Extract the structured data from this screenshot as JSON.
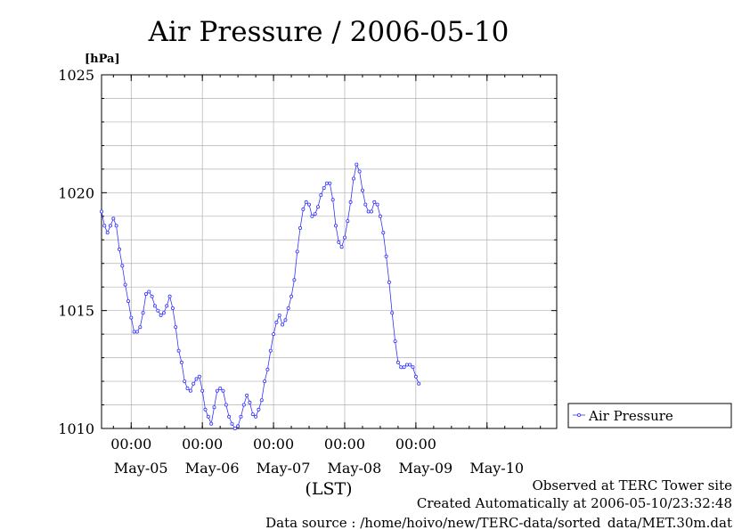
{
  "chart_data": {
    "type": "line",
    "title": "Air Pressure / 2006-05-10",
    "ylabel": "[hPa]",
    "xlabel": "(LST)",
    "ylim": [
      1010,
      1025
    ],
    "xlim": [
      "2006-05-04T14:00",
      "2006-05-10T23:30"
    ],
    "y_ticks": [
      "1010",
      "1015",
      "1020",
      "1025"
    ],
    "x_tick_time_label": "00:00",
    "x_day_labels": [
      "May-05",
      "May-06",
      "May-07",
      "May-08",
      "May-09",
      "May-10"
    ],
    "grid": true,
    "legend_position": "right",
    "series": [
      {
        "name": "Air Pressure",
        "color": "#3333ff",
        "marker": "circle",
        "points": [
          [
            "2006-05-04T14:00",
            1019.2
          ],
          [
            "2006-05-04T15:00",
            1018.6
          ],
          [
            "2006-05-04T16:00",
            1018.3
          ],
          [
            "2006-05-04T17:00",
            1018.6
          ],
          [
            "2006-05-04T18:00",
            1018.9
          ],
          [
            "2006-05-04T19:00",
            1018.6
          ],
          [
            "2006-05-04T20:00",
            1017.6
          ],
          [
            "2006-05-04T21:00",
            1016.9
          ],
          [
            "2006-05-04T22:00",
            1016.1
          ],
          [
            "2006-05-04T23:00",
            1015.4
          ],
          [
            "2006-05-05T00:00",
            1014.7
          ],
          [
            "2006-05-05T01:00",
            1014.1
          ],
          [
            "2006-05-05T02:00",
            1014.1
          ],
          [
            "2006-05-05T03:00",
            1014.3
          ],
          [
            "2006-05-05T04:00",
            1014.9
          ],
          [
            "2006-05-05T05:00",
            1015.7
          ],
          [
            "2006-05-05T06:00",
            1015.8
          ],
          [
            "2006-05-05T07:00",
            1015.6
          ],
          [
            "2006-05-05T08:00",
            1015.2
          ],
          [
            "2006-05-05T09:00",
            1015.0
          ],
          [
            "2006-05-05T10:00",
            1014.8
          ],
          [
            "2006-05-05T11:00",
            1014.9
          ],
          [
            "2006-05-05T12:00",
            1015.2
          ],
          [
            "2006-05-05T13:00",
            1015.6
          ],
          [
            "2006-05-05T14:00",
            1015.1
          ],
          [
            "2006-05-05T15:00",
            1014.3
          ],
          [
            "2006-05-05T16:00",
            1013.3
          ],
          [
            "2006-05-05T17:00",
            1012.8
          ],
          [
            "2006-05-05T18:00",
            1012.0
          ],
          [
            "2006-05-05T19:00",
            1011.7
          ],
          [
            "2006-05-05T20:00",
            1011.6
          ],
          [
            "2006-05-05T21:00",
            1011.9
          ],
          [
            "2006-05-05T22:00",
            1012.1
          ],
          [
            "2006-05-05T23:00",
            1012.2
          ],
          [
            "2006-05-06T00:00",
            1011.6
          ],
          [
            "2006-05-06T01:00",
            1010.8
          ],
          [
            "2006-05-06T02:00",
            1010.5
          ],
          [
            "2006-05-06T03:00",
            1010.2
          ],
          [
            "2006-05-06T04:00",
            1010.9
          ],
          [
            "2006-05-06T05:00",
            1011.6
          ],
          [
            "2006-05-06T06:00",
            1011.7
          ],
          [
            "2006-05-06T07:00",
            1011.6
          ],
          [
            "2006-05-06T08:00",
            1011.0
          ],
          [
            "2006-05-06T09:00",
            1010.5
          ],
          [
            "2006-05-06T10:00",
            1010.2
          ],
          [
            "2006-05-06T11:00",
            1010.0
          ],
          [
            "2006-05-06T12:00",
            1010.1
          ],
          [
            "2006-05-06T13:00",
            1010.5
          ],
          [
            "2006-05-06T14:00",
            1011.0
          ],
          [
            "2006-05-06T15:00",
            1011.4
          ],
          [
            "2006-05-06T16:00",
            1011.1
          ],
          [
            "2006-05-06T17:00",
            1010.6
          ],
          [
            "2006-05-06T18:00",
            1010.5
          ],
          [
            "2006-05-06T19:00",
            1010.8
          ],
          [
            "2006-05-06T20:00",
            1011.2
          ],
          [
            "2006-05-06T21:00",
            1012.0
          ],
          [
            "2006-05-06T22:00",
            1012.5
          ],
          [
            "2006-05-06T23:00",
            1013.3
          ],
          [
            "2006-05-07T00:00",
            1014.0
          ],
          [
            "2006-05-07T01:00",
            1014.5
          ],
          [
            "2006-05-07T02:00",
            1014.8
          ],
          [
            "2006-05-07T03:00",
            1014.4
          ],
          [
            "2006-05-07T04:00",
            1014.6
          ],
          [
            "2006-05-07T05:00",
            1015.1
          ],
          [
            "2006-05-07T06:00",
            1015.6
          ],
          [
            "2006-05-07T07:00",
            1016.3
          ],
          [
            "2006-05-07T08:00",
            1017.5
          ],
          [
            "2006-05-07T09:00",
            1018.5
          ],
          [
            "2006-05-07T10:00",
            1019.3
          ],
          [
            "2006-05-07T11:00",
            1019.6
          ],
          [
            "2006-05-07T12:00",
            1019.5
          ],
          [
            "2006-05-07T13:00",
            1019.0
          ],
          [
            "2006-05-07T14:00",
            1019.1
          ],
          [
            "2006-05-07T15:00",
            1019.4
          ],
          [
            "2006-05-07T16:00",
            1019.9
          ],
          [
            "2006-05-07T17:00",
            1020.2
          ],
          [
            "2006-05-07T18:00",
            1020.4
          ],
          [
            "2006-05-07T19:00",
            1020.4
          ],
          [
            "2006-05-07T20:00",
            1019.7
          ],
          [
            "2006-05-07T21:00",
            1018.6
          ],
          [
            "2006-05-07T22:00",
            1017.9
          ],
          [
            "2006-05-07T23:00",
            1017.7
          ],
          [
            "2006-05-08T00:00",
            1018.1
          ],
          [
            "2006-05-08T01:00",
            1018.8
          ],
          [
            "2006-05-08T02:00",
            1019.6
          ],
          [
            "2006-05-08T03:00",
            1020.6
          ],
          [
            "2006-05-08T04:00",
            1021.2
          ],
          [
            "2006-05-08T05:00",
            1020.9
          ],
          [
            "2006-05-08T06:00",
            1020.1
          ],
          [
            "2006-05-08T07:00",
            1019.5
          ],
          [
            "2006-05-08T08:00",
            1019.2
          ],
          [
            "2006-05-08T09:00",
            1019.2
          ],
          [
            "2006-05-08T10:00",
            1019.6
          ],
          [
            "2006-05-08T11:00",
            1019.5
          ],
          [
            "2006-05-08T12:00",
            1019.0
          ],
          [
            "2006-05-08T13:00",
            1018.3
          ],
          [
            "2006-05-08T14:00",
            1017.3
          ],
          [
            "2006-05-08T15:00",
            1016.2
          ],
          [
            "2006-05-08T16:00",
            1014.9
          ],
          [
            "2006-05-08T17:00",
            1013.7
          ],
          [
            "2006-05-08T18:00",
            1012.8
          ],
          [
            "2006-05-08T19:00",
            1012.6
          ],
          [
            "2006-05-08T20:00",
            1012.6
          ],
          [
            "2006-05-08T21:00",
            1012.7
          ],
          [
            "2006-05-08T22:00",
            1012.7
          ],
          [
            "2006-05-08T23:00",
            1012.6
          ],
          [
            "2006-05-09T00:00",
            1012.2
          ],
          [
            "2006-05-09T01:00",
            1011.9
          ]
        ]
      }
    ]
  },
  "footer": {
    "observed": "Observed at TERC Tower site",
    "created": "Created Automatically at 2006-05-10/23:32:48",
    "source": "Data source : /home/hoivo/new/TERC-data/sorted_data/MET.30m.dat"
  }
}
